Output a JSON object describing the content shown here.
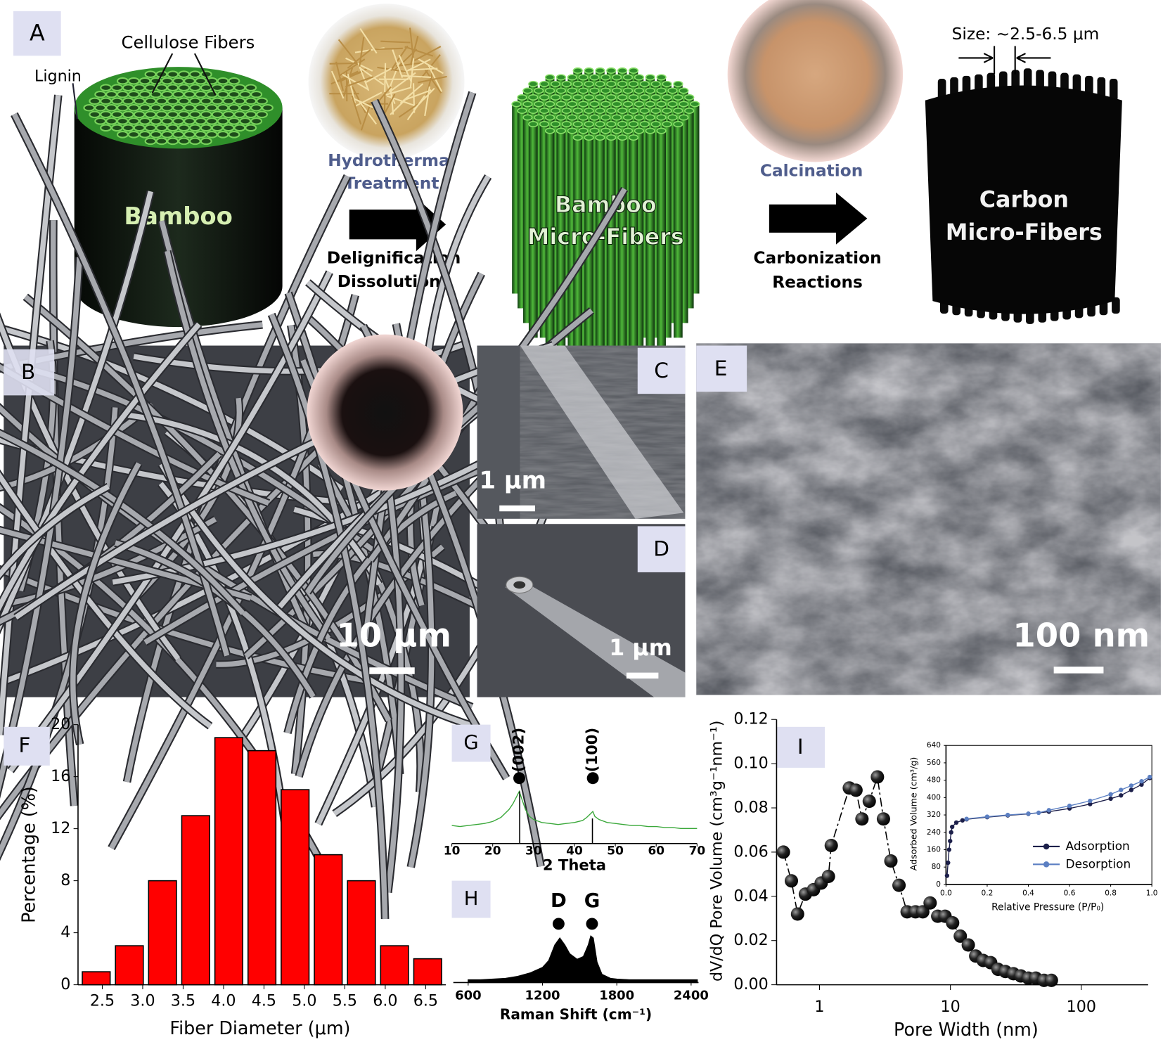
{
  "panel_a": {
    "label": "A",
    "cellulose_label": "Cellulose Fibers",
    "lignin_label": "Lignin",
    "bamboo": "Bamboo",
    "step1_condition": [
      "Hydrothermal",
      "Treatment"
    ],
    "step1_process": [
      "Delignification",
      "Dissolutions"
    ],
    "micro_fibers": [
      "Bamboo",
      "Micro-Fibers"
    ],
    "step2_condition": "Calcination",
    "step2_process": [
      "Carbonization",
      "Reactions"
    ],
    "size_label": "Size: ~2.5-6.5 μm",
    "carbon_fibers": [
      "Carbon",
      "Micro-Fibers"
    ]
  },
  "sem_images": [
    {
      "label": "B",
      "scale_bar": "10 μm"
    },
    {
      "label": "C",
      "scale_bar": "1 μm"
    },
    {
      "label": "D",
      "scale_bar": "1 μm"
    },
    {
      "label": "E",
      "scale_bar": "100 nm"
    }
  ],
  "chart_data": [
    {
      "type": "histogram",
      "panel_label": "F",
      "bins": [
        2.22,
        2.63,
        3.04,
        3.45,
        3.86,
        4.27,
        4.68,
        5.09,
        5.5,
        5.91,
        6.32,
        6.73
      ],
      "values": [
        1,
        3,
        8,
        13,
        19,
        18,
        15,
        10,
        8,
        3,
        2
      ],
      "color": "#ff0000",
      "xlim": [
        2.2,
        6.75
      ],
      "xticks": [
        2.5,
        {
          "value": 3,
          "label": "3.0"
        },
        3.5,
        {
          "value": 4,
          "label": "4.0"
        },
        4.5,
        {
          "value": 5,
          "label": "5.0"
        },
        5.5,
        {
          "value": 6,
          "label": "6.0"
        },
        6.5
      ],
      "ylim": [
        0,
        20
      ],
      "yticks": [
        0,
        4,
        8,
        12,
        16,
        20
      ],
      "xlabel": "Fiber Diameter (μm)",
      "ylabel": "Percentage (%)"
    },
    {
      "type": "line",
      "panel_label": "G",
      "x": [
        10,
        12,
        14,
        16,
        18,
        20,
        22,
        24,
        25,
        26,
        26.5,
        27,
        28,
        29,
        30,
        32,
        34,
        36,
        38,
        40,
        42,
        43,
        44,
        44.5,
        45,
        46,
        48,
        50,
        52,
        54,
        56,
        58,
        60,
        62,
        64,
        66,
        68,
        70
      ],
      "values": [
        18,
        17,
        18,
        19,
        20,
        22,
        26,
        34,
        40,
        48,
        52,
        46,
        34,
        27,
        24,
        21,
        20,
        19,
        20,
        21,
        23,
        26,
        30,
        32,
        27,
        24,
        21,
        20,
        19,
        18,
        18,
        17,
        17,
        16,
        16,
        15,
        15,
        15
      ],
      "color": "#3aa83a",
      "sticks": {
        "x": [
          26.6,
          44.4
        ],
        "values": [
          52,
          25
        ]
      },
      "annotations": [
        {
          "text": "(002)",
          "x": 26.5
        },
        {
          "text": "(100)",
          "x": 44.5
        }
      ],
      "xlim": [
        10,
        70
      ],
      "xticks": [
        10,
        20,
        30,
        40,
        50,
        60,
        70
      ],
      "ylim": [
        0,
        100
      ],
      "xlabel": "2 Theta"
    },
    {
      "type": "area",
      "panel_label": "H",
      "x": [
        600,
        700,
        800,
        900,
        1000,
        1100,
        1200,
        1250,
        1300,
        1340,
        1380,
        1420,
        1480,
        1530,
        1570,
        1590,
        1610,
        1640,
        1680,
        1750,
        1800,
        1900,
        2000,
        2100,
        2200,
        2300,
        2400,
        2450
      ],
      "values": [
        4,
        4,
        5,
        6,
        9,
        14,
        22,
        32,
        55,
        65,
        55,
        42,
        34,
        38,
        55,
        68,
        65,
        30,
        12,
        6,
        5,
        4,
        4,
        4,
        4,
        4,
        4,
        4
      ],
      "color": "#000000",
      "annotations": [
        {
          "text": "D",
          "x": 1330
        },
        {
          "text": "G",
          "x": 1600
        }
      ],
      "xlim": [
        480,
        2460
      ],
      "xticks": [
        600,
        1200,
        1800,
        2400
      ],
      "ylim": [
        0,
        100
      ],
      "xlabel": "Raman Shift (cm⁻¹)"
    },
    {
      "type": "line",
      "panel_label": "I",
      "xscale": "log",
      "markers": true,
      "x": [
        0.53,
        0.61,
        0.68,
        0.78,
        0.9,
        1.03,
        1.17,
        1.23,
        1.69,
        1.9,
        2.11,
        2.4,
        2.77,
        3.08,
        3.51,
        4.05,
        4.67,
        5.41,
        6.15,
        7.0,
        8.0,
        9.1,
        10.4,
        11.9,
        13.7,
        15.6,
        17.8,
        20.3,
        23.1,
        26.3,
        30.3,
        34.5,
        39.4,
        44.9,
        51.9,
        59.1
      ],
      "values": [
        0.06,
        0.047,
        0.032,
        0.041,
        0.043,
        0.046,
        0.049,
        0.063,
        0.089,
        0.088,
        0.075,
        0.083,
        0.094,
        0.075,
        0.056,
        0.045,
        0.033,
        0.033,
        0.033,
        0.037,
        0.031,
        0.031,
        0.028,
        0.022,
        0.018,
        0.013,
        0.011,
        0.01,
        0.007,
        0.006,
        0.005,
        0.004,
        0.003,
        0.003,
        0.002,
        0.002
      ],
      "color": "#000000",
      "xlim": [
        0.47,
        324
      ],
      "xticks": [
        1,
        10,
        100
      ],
      "ylim": [
        0,
        0.12
      ],
      "yticks": [
        {
          "value": 0,
          "label": "0.00"
        },
        0.02,
        0.04,
        0.06,
        0.08,
        {
          "value": 0.1,
          "label": "0.10"
        },
        0.12
      ],
      "xlabel": "Pore Width (nm)",
      "ylabel": "dV/dQ Pore Volume (cm³g⁻¹nm⁻¹)"
    },
    {
      "type": "line",
      "markers": true,
      "legend": "lower right",
      "series": [
        {
          "name": "Adsorption",
          "color": "#1c1f4a",
          "x": [
            0.005,
            0.01,
            0.015,
            0.02,
            0.025,
            0.03,
            0.05,
            0.08,
            0.1,
            0.2,
            0.3,
            0.4,
            0.5,
            0.6,
            0.7,
            0.8,
            0.85,
            0.9,
            0.95,
            0.99
          ],
          "values": [
            40,
            100,
            160,
            200,
            240,
            265,
            285,
            295,
            300,
            310,
            318,
            325,
            335,
            350,
            370,
            395,
            410,
            435,
            460,
            490
          ]
        },
        {
          "name": "Desorption",
          "color": "#5b7fc2",
          "x": [
            0.99,
            0.95,
            0.9,
            0.85,
            0.8,
            0.7,
            0.6,
            0.5,
            0.45,
            0.4,
            0.3,
            0.2,
            0.1
          ],
          "values": [
            495,
            475,
            455,
            435,
            415,
            385,
            362,
            342,
            330,
            326,
            320,
            312,
            302
          ]
        }
      ],
      "xlim": [
        0,
        1
      ],
      "xticks": [
        {
          "value": 0,
          "label": "0.0"
        },
        0.2,
        0.4,
        0.6,
        0.8,
        {
          "value": 1,
          "label": "1.0"
        }
      ],
      "ylim": [
        0,
        640
      ],
      "yticks": [
        0,
        80,
        160,
        240,
        320,
        400,
        480,
        560,
        640
      ],
      "xlabel": "Relative Pressure (P/P₀)",
      "ylabel": "Adsorbed Volume (cm³/g)"
    }
  ]
}
